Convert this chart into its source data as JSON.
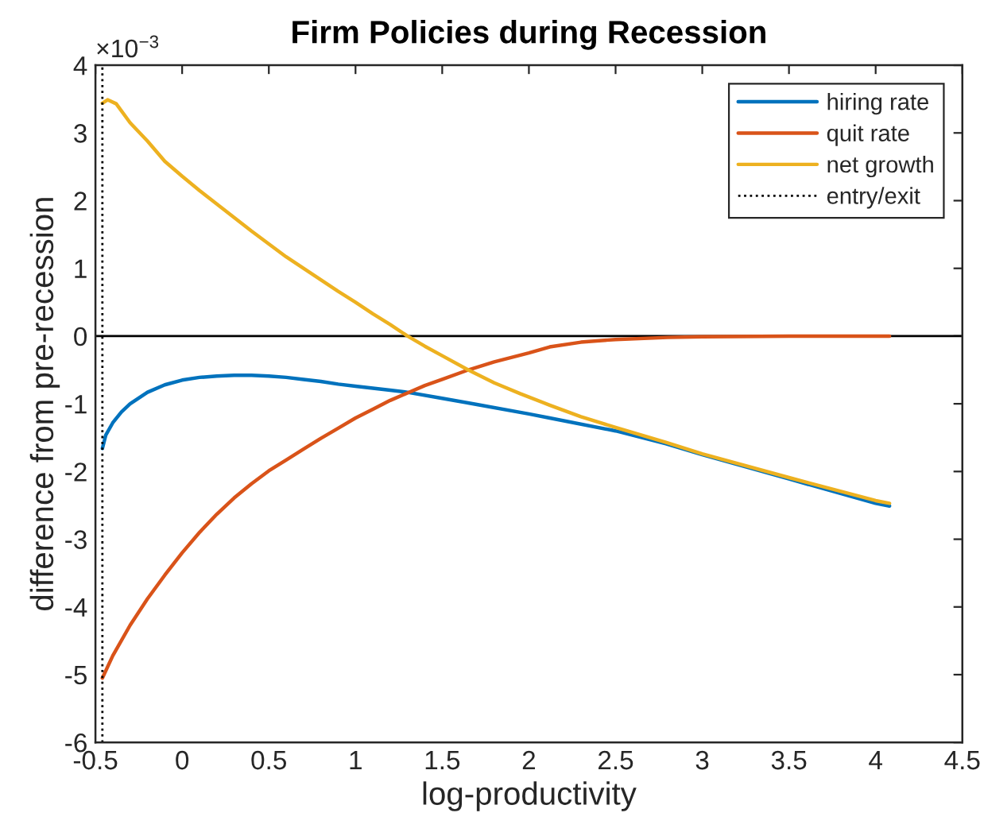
{
  "chart_data": {
    "type": "line",
    "title": "Firm Policies during Recession",
    "xlabel": "log-productivity",
    "ylabel": "difference from pre-recession",
    "annotations": [
      "×10$^{−3}$"
    ],
    "xlim": [
      -0.5,
      4.5
    ],
    "xticks": [
      -0.5,
      0,
      0.5,
      1,
      1.5,
      2,
      2.5,
      3,
      3.5,
      4,
      4.5
    ],
    "ylim": [
      -6,
      4
    ],
    "yticks": [
      -6,
      -5,
      -4,
      -3,
      -2,
      -1,
      0,
      1,
      2,
      3,
      4
    ],
    "legend": "top right",
    "series": [
      {
        "name": "hiring rate",
        "color": "#0072bd",
        "x": [
          -0.46,
          -0.44,
          -0.4,
          -0.35,
          -0.3,
          -0.2,
          -0.1,
          0,
          0.1,
          0.2,
          0.3,
          0.4,
          0.5,
          0.6,
          0.7,
          0.8,
          0.9,
          1.0,
          1.1,
          1.2,
          1.3,
          1.5,
          1.7,
          2.0,
          2.12,
          2.5,
          2.79,
          3.0,
          3.5,
          4.0,
          4.08
        ],
        "values": [
          -1.66,
          -1.46,
          -1.28,
          -1.12,
          -1.0,
          -0.83,
          -0.72,
          -0.65,
          -0.61,
          -0.59,
          -0.58,
          -0.58,
          -0.59,
          -0.61,
          -0.64,
          -0.67,
          -0.71,
          -0.74,
          -0.77,
          -0.8,
          -0.83,
          -0.92,
          -1.01,
          -1.15,
          -1.21,
          -1.4,
          -1.59,
          -1.75,
          -2.11,
          -2.47,
          -2.51
        ]
      },
      {
        "name": "quit rate",
        "color": "#d95319",
        "x": [
          -0.46,
          -0.4,
          -0.3,
          -0.2,
          -0.1,
          0,
          0.1,
          0.2,
          0.3,
          0.4,
          0.5,
          0.6,
          0.7,
          0.8,
          0.9,
          1.0,
          1.1,
          1.2,
          1.3,
          1.4,
          1.5,
          1.65,
          1.8,
          2.0,
          2.12,
          2.3,
          2.5,
          2.8,
          3.0,
          3.5,
          4.08
        ],
        "values": [
          -5.05,
          -4.72,
          -4.27,
          -3.88,
          -3.53,
          -3.2,
          -2.9,
          -2.63,
          -2.39,
          -2.18,
          -1.99,
          -1.83,
          -1.67,
          -1.51,
          -1.36,
          -1.21,
          -1.08,
          -0.95,
          -0.84,
          -0.73,
          -0.64,
          -0.5,
          -0.38,
          -0.25,
          -0.16,
          -0.09,
          -0.05,
          -0.02,
          -0.01,
          0,
          0
        ]
      },
      {
        "name": "net growth",
        "color": "#edb120",
        "x": [
          -0.46,
          -0.43,
          -0.38,
          -0.3,
          -0.2,
          -0.1,
          0,
          0.1,
          0.2,
          0.3,
          0.4,
          0.5,
          0.6,
          0.7,
          0.8,
          0.9,
          1.0,
          1.1,
          1.2,
          1.3,
          1.4,
          1.5,
          1.65,
          1.8,
          1.95,
          2.12,
          2.3,
          2.5,
          2.79,
          3.0,
          3.5,
          4.0,
          4.08
        ],
        "values": [
          3.44,
          3.49,
          3.43,
          3.15,
          2.88,
          2.58,
          2.36,
          2.15,
          1.95,
          1.75,
          1.55,
          1.36,
          1.17,
          1.0,
          0.83,
          0.66,
          0.5,
          0.33,
          0.17,
          0.0,
          -0.15,
          -0.29,
          -0.5,
          -0.69,
          -0.85,
          -1.02,
          -1.19,
          -1.35,
          -1.57,
          -1.74,
          -2.09,
          -2.43,
          -2.47
        ]
      },
      {
        "name": "entry/exit",
        "color": "#000000",
        "line_style": "dotted",
        "x": [
          -0.46,
          -0.46
        ],
        "values": [
          -6,
          4
        ]
      }
    ],
    "ref_lines": [
      {
        "axis": "y",
        "value": 0,
        "color": "#000000",
        "line_style": "solid"
      }
    ]
  }
}
